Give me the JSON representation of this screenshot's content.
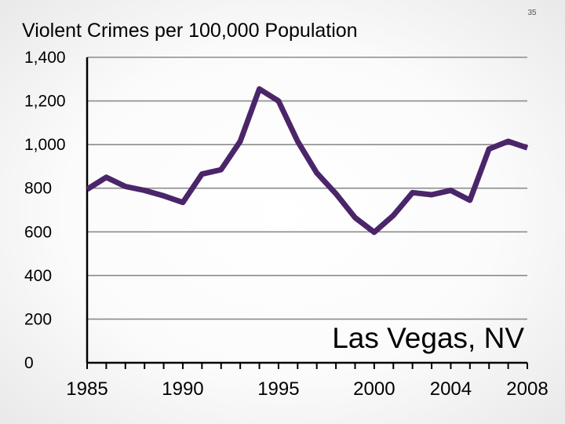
{
  "slide_number": "35",
  "chart_data": {
    "type": "line",
    "title": "Violent Crimes per 100,000 Population",
    "annotation": "Las Vegas, NV",
    "xlabel": "",
    "ylabel": "",
    "grid": true,
    "xlim": [
      1985,
      2008
    ],
    "ylim": [
      0,
      1400
    ],
    "y_ticks": [
      0,
      200,
      400,
      600,
      800,
      1000,
      1200,
      1400
    ],
    "y_tick_labels": [
      "0",
      "200",
      "400",
      "600",
      "800",
      "1,000",
      "1,200",
      "1,400"
    ],
    "x_tick_labels": [
      "1985",
      "1990",
      "1995",
      "2000",
      "2004",
      "2008"
    ],
    "x_tick_label_years": [
      1985,
      1990,
      1995,
      2000,
      2004,
      2008
    ],
    "series_color": "#4b2569",
    "x": [
      1985,
      1986,
      1987,
      1988,
      1989,
      1990,
      1991,
      1992,
      1993,
      1994,
      1995,
      1996,
      1997,
      1998,
      1999,
      2000,
      2001,
      2002,
      2003,
      2004,
      2005,
      2006,
      2007,
      2008
    ],
    "series": [
      {
        "values": [
          795,
          850,
          808,
          790,
          765,
          735,
          865,
          885,
          1015,
          1255,
          1200,
          1015,
          870,
          775,
          665,
          598,
          675,
          780,
          770,
          790,
          745,
          980,
          1015,
          985
        ]
      }
    ]
  }
}
